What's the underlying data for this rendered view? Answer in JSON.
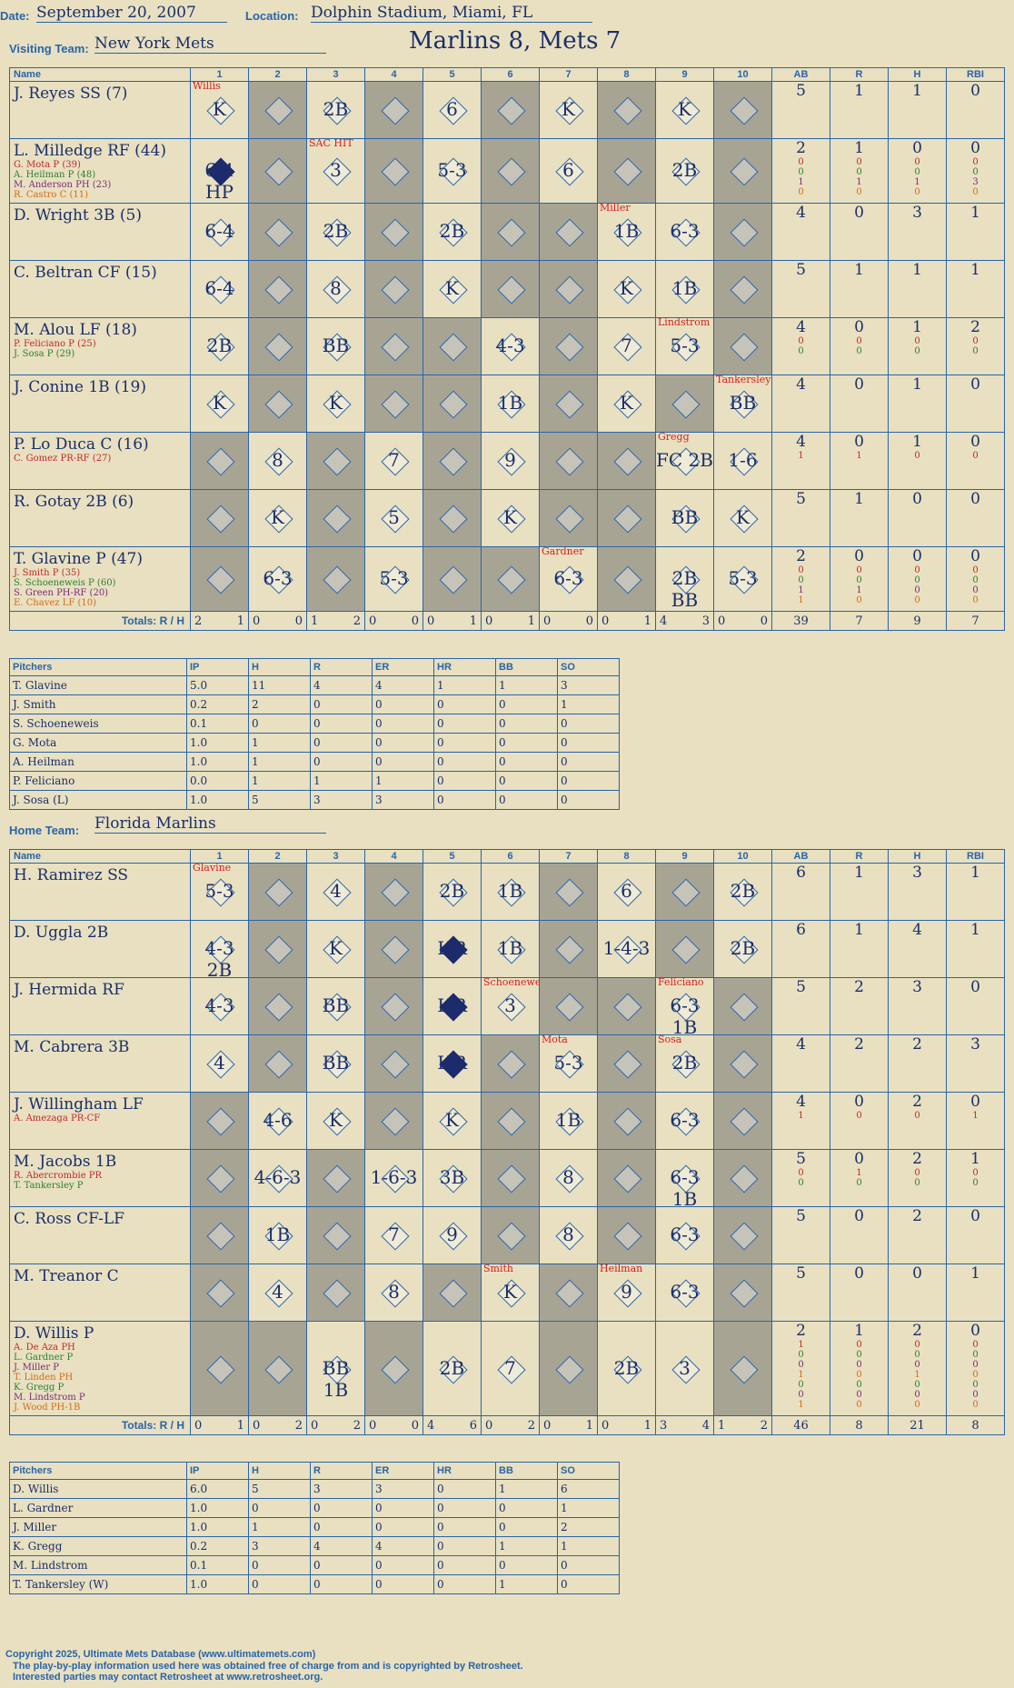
{
  "header": {
    "date_label": "Date:",
    "date": "September 20, 2007",
    "location_label": "Location:",
    "location": "Dolphin Stadium, Miami, FL",
    "visiting_label": "Visiting Team:",
    "visiting_team": "New York Mets",
    "home_label": "Home Team:",
    "home_team": "Florida Marlins",
    "score_title": "Marlins 8, Mets 7"
  },
  "columns": {
    "name": "Name",
    "innings": [
      "1",
      "2",
      "3",
      "4",
      "5",
      "6",
      "7",
      "8",
      "9",
      "10"
    ],
    "stats": [
      "AB",
      "R",
      "H",
      "RBI"
    ],
    "totals": "Totals:",
    "r": "R",
    "h": "H"
  },
  "visitors": {
    "batters": [
      {
        "name": "J. Reyes SS (7)",
        "subs": [],
        "stats": [
          "5",
          "1",
          "1",
          "0"
        ],
        "substats": [],
        "cells": {
          "1": "K",
          "3": "2B",
          "5": "6",
          "7": "K",
          "9": "K"
        },
        "notes": {
          "1": "Willis"
        }
      },
      {
        "name": "L. Milledge RF (44)",
        "subs": [
          [
            "G. Mota P (39)",
            "red"
          ],
          [
            "A. Heilman P (48)",
            "green"
          ],
          [
            "M. Anderson PH (23)",
            "purple"
          ],
          [
            "R. Castro C (11)",
            "orange"
          ]
        ],
        "stats": [
          "2",
          "1",
          "0",
          "0"
        ],
        "substats": [
          [
            "0",
            "0",
            "0",
            "0"
          ],
          [
            "0",
            "0",
            "0",
            "0"
          ],
          [
            "1",
            "1",
            "1",
            "3"
          ],
          [
            "0",
            "0",
            "0",
            "0"
          ]
        ],
        "cells": {
          "1": "6-4 HP",
          "3": "3",
          "5": "5-3",
          "7": "6",
          "9": "2B"
        },
        "notes": {
          "3": "SAC HIT"
        }
      },
      {
        "name": "D. Wright 3B (5)",
        "subs": [],
        "stats": [
          "4",
          "0",
          "3",
          "1"
        ],
        "substats": [],
        "cells": {
          "1": "6-4",
          "3": "2B",
          "5": "2B",
          "8": "1B",
          "9": "6-3"
        },
        "notes": {
          "8": "Miller"
        }
      },
      {
        "name": "C. Beltran CF (15)",
        "subs": [],
        "stats": [
          "5",
          "1",
          "1",
          "1"
        ],
        "substats": [],
        "cells": {
          "1": "6-4",
          "3": "8",
          "5": "K",
          "8": "K",
          "9": "1B"
        },
        "notes": {}
      },
      {
        "name": "M. Alou LF (18)",
        "subs": [
          [
            "P. Feliciano P (25)",
            "red"
          ],
          [
            "J. Sosa P (29)",
            "green"
          ]
        ],
        "stats": [
          "4",
          "0",
          "1",
          "2"
        ],
        "substats": [
          [
            "0",
            "0",
            "0",
            "0"
          ],
          [
            "0",
            "0",
            "0",
            "0"
          ]
        ],
        "cells": {
          "1": "2B",
          "3": "BB",
          "6": "4-3",
          "8": "7",
          "9": "5-3"
        },
        "notes": {
          "9": "Lindstrom"
        }
      },
      {
        "name": "J. Conine 1B (19)",
        "subs": [],
        "stats": [
          "4",
          "0",
          "1",
          "0"
        ],
        "substats": [],
        "cells": {
          "1": "K",
          "3": "K",
          "6": "1B",
          "8": "K",
          "10": "BB"
        },
        "notes": {
          "10": "Tankersley"
        }
      },
      {
        "name": "P. Lo Duca C (16)",
        "subs": [
          [
            "C. Gomez PR-RF (27)",
            "red"
          ]
        ],
        "stats": [
          "4",
          "0",
          "1",
          "0"
        ],
        "substats": [
          [
            "1",
            "1",
            "0",
            "0"
          ]
        ],
        "cells": {
          "2": "8",
          "4": "7",
          "6": "9",
          "9": "FC 2B",
          "10": "1-6"
        },
        "notes": {
          "9": "Gregg"
        }
      },
      {
        "name": "R. Gotay 2B (6)",
        "subs": [],
        "stats": [
          "5",
          "1",
          "0",
          "0"
        ],
        "substats": [],
        "cells": {
          "2": "K",
          "4": "5",
          "6": "K",
          "9": "BB",
          "10": "K"
        },
        "notes": {}
      },
      {
        "name": "T. Glavine P (47)",
        "subs": [
          [
            "J. Smith P (35)",
            "red"
          ],
          [
            "S. Schoeneweis P (60)",
            "green"
          ],
          [
            "S. Green PH-RF (20)",
            "purple"
          ],
          [
            "E. Chavez LF (10)",
            "orange"
          ]
        ],
        "stats": [
          "2",
          "0",
          "0",
          "0"
        ],
        "substats": [
          [
            "0",
            "0",
            "0",
            "0"
          ],
          [
            "0",
            "0",
            "0",
            "0"
          ],
          [
            "1",
            "1",
            "0",
            "0"
          ],
          [
            "1",
            "0",
            "0",
            "0"
          ]
        ],
        "cells": {
          "2": "6-3",
          "4": "5-3",
          "7": "6-3",
          "9": "2B BB",
          "10": "5-3"
        },
        "notes": {
          "7": "Gardner"
        }
      }
    ],
    "totals_rh": [
      [
        "2",
        "1"
      ],
      [
        "0",
        "0"
      ],
      [
        "1",
        "2"
      ],
      [
        "0",
        "0"
      ],
      [
        "0",
        "1"
      ],
      [
        "0",
        "1"
      ],
      [
        "0",
        "0"
      ],
      [
        "0",
        "1"
      ],
      [
        "4",
        "3"
      ],
      [
        "0",
        "0"
      ]
    ],
    "totals_stats": [
      "39",
      "7",
      "9",
      "7"
    ],
    "pitchers_header": [
      "Pitchers",
      "IP",
      "H",
      "R",
      "ER",
      "HR",
      "BB",
      "SO"
    ],
    "pitchers": [
      [
        "T. Glavine",
        "5.0",
        "11",
        "4",
        "4",
        "1",
        "1",
        "3"
      ],
      [
        "J. Smith",
        "0.2",
        "2",
        "0",
        "0",
        "0",
        "0",
        "1"
      ],
      [
        "S. Schoeneweis",
        "0.1",
        "0",
        "0",
        "0",
        "0",
        "0",
        "0"
      ],
      [
        "G. Mota",
        "1.0",
        "1",
        "0",
        "0",
        "0",
        "0",
        "0"
      ],
      [
        "A. Heilman",
        "1.0",
        "1",
        "0",
        "0",
        "0",
        "0",
        "0"
      ],
      [
        "P. Feliciano",
        "0.0",
        "1",
        "1",
        "1",
        "0",
        "0",
        "0"
      ],
      [
        "J. Sosa (L)",
        "1.0",
        "5",
        "3",
        "3",
        "0",
        "0",
        "0"
      ]
    ]
  },
  "home": {
    "batters": [
      {
        "name": "H. Ramirez SS",
        "subs": [],
        "stats": [
          "6",
          "1",
          "3",
          "1"
        ],
        "substats": [],
        "cells": {
          "1": "5-3",
          "3": "4",
          "5": "2B",
          "6": "1B",
          "8": "6",
          "10": "2B"
        },
        "notes": {
          "1": "Glavine"
        }
      },
      {
        "name": "D. Uggla 2B",
        "subs": [],
        "stats": [
          "6",
          "1",
          "4",
          "1"
        ],
        "substats": [],
        "cells": {
          "1": "4-3 2B",
          "3": "K",
          "5": "HR",
          "6": "1B",
          "8": "1-4-3",
          "10": "2B"
        },
        "notes": {}
      },
      {
        "name": "J. Hermida RF",
        "subs": [],
        "stats": [
          "5",
          "2",
          "3",
          "0"
        ],
        "substats": [],
        "cells": {
          "1": "4-3",
          "3": "BB",
          "5": "HR",
          "6": "3",
          "9": "6-3 1B"
        },
        "notes": {
          "6": "Schoeneweis",
          "9": "Feliciano"
        }
      },
      {
        "name": "M. Cabrera 3B",
        "subs": [],
        "stats": [
          "4",
          "2",
          "2",
          "3"
        ],
        "substats": [],
        "cells": {
          "1": "4",
          "3": "BB",
          "5": "HR",
          "7": "5-3",
          "9": "2B"
        },
        "notes": {
          "7": "Mota",
          "9": "Sosa"
        }
      },
      {
        "name": "J. Willingham LF",
        "subs": [
          [
            "A. Amezaga PR-CF",
            "red"
          ]
        ],
        "stats": [
          "4",
          "0",
          "2",
          "0"
        ],
        "substats": [
          [
            "1",
            "0",
            "0",
            "1"
          ]
        ],
        "cells": {
          "2": "4-6",
          "3": "K",
          "5": "K",
          "7": "1B",
          "9": "6-3"
        },
        "notes": {}
      },
      {
        "name": "M. Jacobs 1B",
        "subs": [
          [
            "R. Abercrombie PR",
            "red"
          ],
          [
            "T. Tankersley P",
            "green"
          ]
        ],
        "stats": [
          "5",
          "0",
          "2",
          "1"
        ],
        "substats": [
          [
            "0",
            "1",
            "0",
            "0"
          ],
          [
            "0",
            "0",
            "0",
            "0"
          ]
        ],
        "cells": {
          "2": "4-6-3",
          "4": "1-6-3",
          "5": "3B",
          "7": "8",
          "9": "6-3 1B"
        },
        "notes": {}
      },
      {
        "name": "C. Ross CF-LF",
        "subs": [],
        "stats": [
          "5",
          "0",
          "2",
          "0"
        ],
        "substats": [],
        "cells": {
          "2": "1B",
          "4": "7",
          "5": "9",
          "7": "8",
          "9": "6-3"
        },
        "notes": {}
      },
      {
        "name": "M. Treanor C",
        "subs": [],
        "stats": [
          "5",
          "0",
          "0",
          "1"
        ],
        "substats": [],
        "cells": {
          "2": "4",
          "4": "8",
          "6": "K",
          "8": "9",
          "9": "6-3"
        },
        "notes": {
          "6": "Smith",
          "8": "Heilman"
        }
      },
      {
        "name": "D. Willis P",
        "subs": [
          [
            "A. De Aza PH",
            "red"
          ],
          [
            "L. Gardner P",
            "green"
          ],
          [
            "J. Miller P",
            "purple"
          ],
          [
            "T. Linden PH",
            "orange"
          ],
          [
            "K. Gregg P",
            "green"
          ],
          [
            "M. Lindstrom P",
            "purple"
          ],
          [
            "J. Wood PH-1B",
            "orange"
          ]
        ],
        "stats": [
          "2",
          "1",
          "2",
          "0"
        ],
        "substats": [
          [
            "1",
            "0",
            "0",
            "0"
          ],
          [
            "0",
            "0",
            "0",
            "0"
          ],
          [
            "0",
            "0",
            "0",
            "0"
          ],
          [
            "1",
            "0",
            "1",
            "0"
          ],
          [
            "0",
            "0",
            "0",
            "0"
          ],
          [
            "0",
            "0",
            "0",
            "0"
          ],
          [
            "1",
            "0",
            "0",
            "0"
          ]
        ],
        "cells": {
          "3": "BB 1B",
          "5": "2B",
          "6": "7",
          "8": "2B",
          "9": "3"
        },
        "notes": {}
      }
    ],
    "totals_rh": [
      [
        "0",
        "1"
      ],
      [
        "0",
        "2"
      ],
      [
        "0",
        "2"
      ],
      [
        "0",
        "0"
      ],
      [
        "4",
        "6"
      ],
      [
        "0",
        "2"
      ],
      [
        "0",
        "1"
      ],
      [
        "0",
        "1"
      ],
      [
        "3",
        "4"
      ],
      [
        "1",
        "2"
      ]
    ],
    "totals_stats": [
      "46",
      "8",
      "21",
      "8"
    ],
    "pitchers_header": [
      "Pitchers",
      "IP",
      "H",
      "R",
      "ER",
      "HR",
      "BB",
      "SO"
    ],
    "pitchers": [
      [
        "D. Willis",
        "6.0",
        "5",
        "3",
        "3",
        "0",
        "1",
        "6"
      ],
      [
        "L. Gardner",
        "1.0",
        "0",
        "0",
        "0",
        "0",
        "0",
        "1"
      ],
      [
        "J. Miller",
        "1.0",
        "1",
        "0",
        "0",
        "0",
        "0",
        "2"
      ],
      [
        "K. Gregg",
        "0.2",
        "3",
        "4",
        "4",
        "0",
        "1",
        "1"
      ],
      [
        "M. Lindstrom",
        "0.1",
        "0",
        "0",
        "0",
        "0",
        "0",
        "0"
      ],
      [
        "T. Tankersley (W)",
        "1.0",
        "0",
        "0",
        "0",
        "0",
        "1",
        "0"
      ]
    ]
  },
  "footer": {
    "line1": "Copyright 2025, Ultimate Mets Database (www.ultimatemets.com)",
    "line2": "The play-by-play information used here was obtained free of charge from and is copyrighted by Retrosheet.",
    "line3": "Interested parties may contact Retrosheet at www.retrosheet.org."
  }
}
